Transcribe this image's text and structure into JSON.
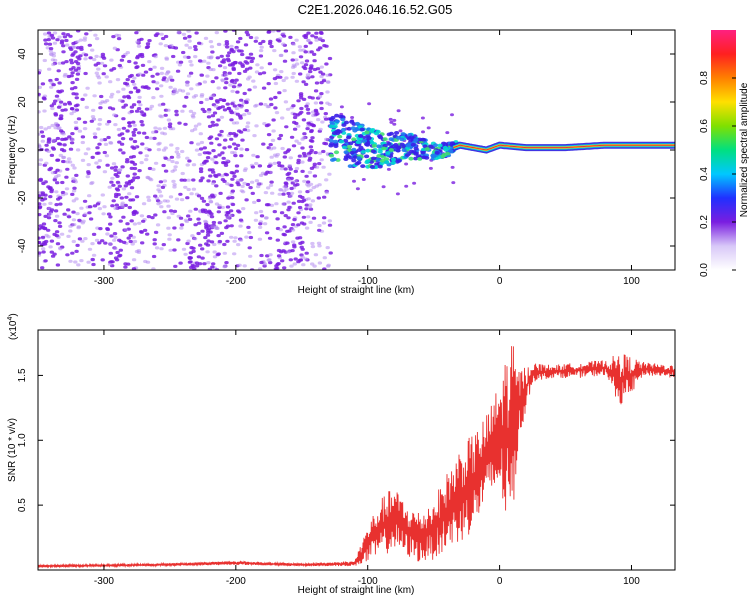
{
  "title": "C2E1.2026.046.16.52.G05",
  "colors": {
    "snr_line": "#e8312f",
    "scatter": "#7a1ee0",
    "scatter_light": "#b48cf0",
    "axis": "#000000"
  },
  "chart_data": [
    {
      "type": "heatmap",
      "title": "C2E1.2026.046.16.52.G05",
      "xlabel": "Height of straight line (km)",
      "ylabel": "Frequency (Hz)",
      "xlim": [
        -350,
        133
      ],
      "ylim": [
        -50,
        50
      ],
      "xticks": [
        -300,
        -200,
        -100,
        0,
        100
      ],
      "yticks": [
        -40,
        -20,
        0,
        20,
        40
      ],
      "xtick_labels": [
        "-300",
        "-200",
        "-100",
        "0",
        "100"
      ],
      "ytick_labels": [
        "-40",
        "-20",
        "0",
        "20",
        "40"
      ],
      "noise_region_x": [
        -350,
        -128
      ],
      "dense_bands_x": [
        [
          -345,
          -325
        ],
        [
          -290,
          -270
        ],
        [
          -225,
          -195
        ],
        [
          -160,
          -140
        ]
      ],
      "signal_trace": [
        {
          "x": -128,
          "y": 6
        },
        {
          "x": -115,
          "y": 3
        },
        {
          "x": -100,
          "y": 1
        },
        {
          "x": -85,
          "y": 0
        },
        {
          "x": -70,
          "y": 2
        },
        {
          "x": -55,
          "y": 0
        },
        {
          "x": -40,
          "y": 0
        },
        {
          "x": -30,
          "y": 2
        },
        {
          "x": -20,
          "y": 1
        },
        {
          "x": -10,
          "y": 0
        },
        {
          "x": 0,
          "y": 2
        },
        {
          "x": 20,
          "y": 1
        },
        {
          "x": 50,
          "y": 1
        },
        {
          "x": 80,
          "y": 2
        },
        {
          "x": 100,
          "y": 2
        },
        {
          "x": 133,
          "y": 2
        }
      ],
      "colorbar": {
        "label": "Normalized spectral amplitude",
        "range": [
          0,
          1
        ],
        "ticks": [
          0.0,
          0.2,
          0.4,
          0.6,
          0.8
        ],
        "tick_labels": [
          "0.0",
          "0.2",
          "0.4",
          "0.6",
          "0.8"
        ],
        "gradient_stops": [
          "#ffffff",
          "#d8c8f8",
          "#7a1ee0",
          "#2030ff",
          "#00c8ff",
          "#00e080",
          "#80e000",
          "#ffe000",
          "#ff8000",
          "#ff2020",
          "#ff2080"
        ]
      }
    },
    {
      "type": "line",
      "xlabel": "Height of straight line (km)",
      "ylabel": "SNR (10 * v/v)",
      "scale_label": "(x10",
      "scale_exp": "4",
      "scale_close": ")",
      "xlim": [
        -350,
        133
      ],
      "ylim": [
        0,
        1.85
      ],
      "xticks": [
        -300,
        -200,
        -100,
        0,
        100
      ],
      "yticks": [
        0.5,
        1.0,
        1.5
      ],
      "xtick_labels": [
        "-300",
        "-200",
        "-100",
        "0",
        "100"
      ],
      "ytick_labels": [
        "0.5",
        "1.0",
        "1.5"
      ],
      "series": [
        {
          "name": "SNR",
          "envelope": [
            {
              "x": -350,
              "lo": 0.02,
              "hi": 0.04
            },
            {
              "x": -260,
              "lo": 0.03,
              "hi": 0.05
            },
            {
              "x": -200,
              "lo": 0.04,
              "hi": 0.07
            },
            {
              "x": -150,
              "lo": 0.03,
              "hi": 0.05
            },
            {
              "x": -110,
              "lo": 0.03,
              "hi": 0.07
            },
            {
              "x": -100,
              "lo": 0.05,
              "hi": 0.35
            },
            {
              "x": -90,
              "lo": 0.1,
              "hi": 0.55
            },
            {
              "x": -80,
              "lo": 0.15,
              "hi": 0.65
            },
            {
              "x": -70,
              "lo": 0.1,
              "hi": 0.5
            },
            {
              "x": -60,
              "lo": 0.05,
              "hi": 0.45
            },
            {
              "x": -50,
              "lo": 0.08,
              "hi": 0.55
            },
            {
              "x": -40,
              "lo": 0.15,
              "hi": 0.75
            },
            {
              "x": -30,
              "lo": 0.2,
              "hi": 0.95
            },
            {
              "x": -20,
              "lo": 0.3,
              "hi": 1.05
            },
            {
              "x": -10,
              "lo": 0.5,
              "hi": 1.2
            },
            {
              "x": 0,
              "lo": 0.6,
              "hi": 1.45
            },
            {
              "x": 8,
              "lo": 0.2,
              "hi": 1.83
            },
            {
              "x": 15,
              "lo": 1.0,
              "hi": 1.55
            },
            {
              "x": 25,
              "lo": 1.45,
              "hi": 1.6
            },
            {
              "x": 40,
              "lo": 1.48,
              "hi": 1.58
            },
            {
              "x": 60,
              "lo": 1.48,
              "hi": 1.6
            },
            {
              "x": 80,
              "lo": 1.5,
              "hi": 1.62
            },
            {
              "x": 92,
              "lo": 1.25,
              "hi": 1.68
            },
            {
              "x": 110,
              "lo": 1.5,
              "hi": 1.6
            },
            {
              "x": 133,
              "lo": 1.48,
              "hi": 1.58
            }
          ]
        }
      ]
    }
  ]
}
